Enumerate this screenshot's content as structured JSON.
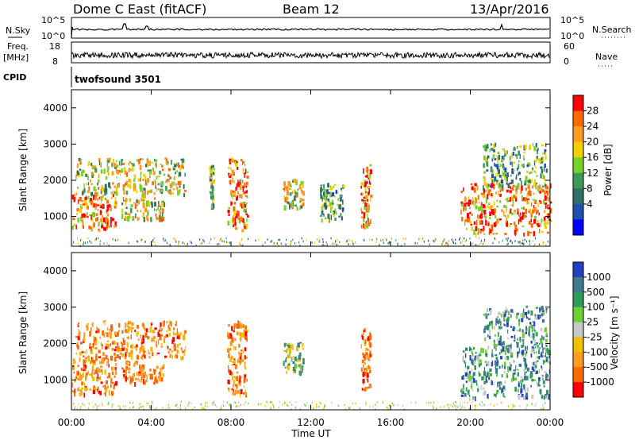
{
  "header": {
    "title": "Dome C East (fitACF)",
    "beam": "Beam 12",
    "date": "13/Apr/2016"
  },
  "top_panels": {
    "nsky_label": "N.Sky",
    "nsky_ticks": [
      "10^5",
      "10^0"
    ],
    "nsearch_label": "N.Search",
    "nsearch_ticks": [
      "10^5",
      "10^0"
    ],
    "freq_label": "Freq.",
    "freq_unit": "[MHz]",
    "freq_ticks": [
      "18",
      "8"
    ],
    "nave_label": "Nave",
    "nave_ticks": [
      "60",
      "0"
    ],
    "cpid_label": "CPID",
    "cpid_value": "twofsound 3501"
  },
  "chart_data": [
    {
      "type": "heatmap",
      "panel": "power",
      "ylabel": "Slant Range [km]",
      "xlabel": "Time UT",
      "x_ticks": [
        "00:00",
        "04:00",
        "08:00",
        "12:00",
        "16:00",
        "20:00",
        "00:00"
      ],
      "xlim_hours": [
        0,
        24
      ],
      "y_ticks": [
        1000,
        2000,
        3000,
        4000
      ],
      "ylim": [
        180,
        4500
      ],
      "colorbar": {
        "label": "Power [dB]",
        "ticks": [
          "28",
          "24",
          "20",
          "16",
          "12",
          "8",
          "4"
        ],
        "colors": [
          "#ff0000",
          "#ff6a00",
          "#ff9b1e",
          "#f0d000",
          "#7ad12a",
          "#3f9a57",
          "#2f7068",
          "#1f4fb0",
          "#0000ff"
        ]
      },
      "echo_regions": [
        {
          "t0": 0.0,
          "t1": 2.2,
          "r0": 600,
          "r1": 1600,
          "level": "high"
        },
        {
          "t0": 0.2,
          "t1": 5.7,
          "r0": 1600,
          "r1": 2600,
          "level": "mid"
        },
        {
          "t0": 2.5,
          "t1": 4.6,
          "r0": 900,
          "r1": 1500,
          "level": "mid"
        },
        {
          "t0": 6.9,
          "t1": 7.1,
          "r0": 1200,
          "r1": 2400,
          "level": "low"
        },
        {
          "t0": 7.8,
          "t1": 8.8,
          "r0": 600,
          "r1": 2600,
          "level": "high"
        },
        {
          "t0": 10.6,
          "t1": 11.6,
          "r0": 1200,
          "r1": 2000,
          "level": "mid"
        },
        {
          "t0": 12.4,
          "t1": 13.6,
          "r0": 900,
          "r1": 1900,
          "level": "low"
        },
        {
          "t0": 14.5,
          "t1": 15.0,
          "r0": 700,
          "r1": 2400,
          "level": "high"
        },
        {
          "t0": 19.5,
          "t1": 24.0,
          "r0": 500,
          "r1": 1900,
          "level": "high"
        },
        {
          "t0": 20.6,
          "t1": 23.8,
          "r0": 1800,
          "r1": 3000,
          "level": "low"
        }
      ]
    },
    {
      "type": "heatmap",
      "panel": "velocity",
      "ylabel": "Slant Range [km]",
      "xlabel": "Time UT",
      "x_ticks": [
        "00:00",
        "04:00",
        "08:00",
        "12:00",
        "16:00",
        "20:00",
        "00:00"
      ],
      "xlim_hours": [
        0,
        24
      ],
      "y_ticks": [
        1000,
        2000,
        3000,
        4000
      ],
      "ylim": [
        180,
        4500
      ],
      "colorbar": {
        "label": "Velocity [m s⁻¹]",
        "ticks": [
          "1000",
          "500",
          "100",
          "25",
          "-25",
          "-100",
          "-500",
          "-1000"
        ],
        "colors": [
          "#2340c0",
          "#3d7a8c",
          "#2f9a5a",
          "#6fcf3a",
          "#c8c8c8",
          "#f0c000",
          "#ff9b1e",
          "#ff6a00",
          "#ff0000"
        ]
      },
      "echo_regions": [
        {
          "t0": 0.0,
          "t1": 2.2,
          "r0": 600,
          "r1": 1600,
          "level": "neg"
        },
        {
          "t0": 0.2,
          "t1": 5.7,
          "r0": 1600,
          "r1": 2600,
          "level": "neg"
        },
        {
          "t0": 2.5,
          "t1": 4.6,
          "r0": 900,
          "r1": 1500,
          "level": "neg"
        },
        {
          "t0": 7.8,
          "t1": 8.8,
          "r0": 600,
          "r1": 2600,
          "level": "neg"
        },
        {
          "t0": 10.6,
          "t1": 11.6,
          "r0": 1200,
          "r1": 2000,
          "level": "mix"
        },
        {
          "t0": 14.5,
          "t1": 15.0,
          "r0": 700,
          "r1": 2400,
          "level": "neg"
        },
        {
          "t0": 19.5,
          "t1": 24.0,
          "r0": 500,
          "r1": 1900,
          "level": "pos"
        },
        {
          "t0": 20.6,
          "t1": 23.8,
          "r0": 1800,
          "r1": 3000,
          "level": "pos"
        }
      ]
    }
  ]
}
